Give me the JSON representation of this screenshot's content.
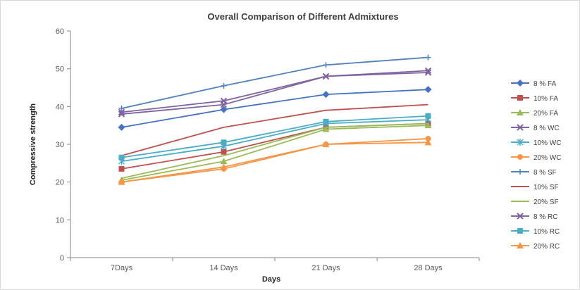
{
  "chart_data": {
    "type": "line",
    "title": "Overall Comparison of Different Admixtures",
    "xlabel": "Days",
    "ylabel": "Compressive strength",
    "categories": [
      "7Days",
      "14 Days",
      "21 Days",
      "28 Days"
    ],
    "ylim": [
      0,
      60
    ],
    "yticks": [
      0,
      10,
      20,
      30,
      40,
      50,
      60
    ],
    "grid": false,
    "legend_position": "right",
    "series": [
      {
        "name": "8 % FA",
        "color": "#4472C4",
        "marker": "diamond",
        "values": [
          34.5,
          39.2,
          43.2,
          44.5
        ]
      },
      {
        "name": "10% FA",
        "color": "#C0504D",
        "marker": "square",
        "values": [
          23.5,
          28.0,
          34.5,
          35.5
        ]
      },
      {
        "name": "20% FA",
        "color": "#9BBB59",
        "marker": "triangle",
        "values": [
          20.5,
          25.5,
          34.0,
          35.0
        ]
      },
      {
        "name": "8 % WC",
        "color": "#8064A2",
        "marker": "x",
        "values": [
          38.0,
          40.5,
          48.0,
          49.0
        ]
      },
      {
        "name": "10% WC",
        "color": "#4BACC6",
        "marker": "star",
        "values": [
          25.5,
          29.5,
          35.5,
          36.5
        ]
      },
      {
        "name": "20% WC",
        "color": "#F79646",
        "marker": "circle",
        "values": [
          20.0,
          23.5,
          30.0,
          31.5
        ]
      },
      {
        "name": "8 % SF",
        "color": "#4F81BD",
        "marker": "plus",
        "values": [
          39.5,
          45.5,
          51.0,
          53.0
        ]
      },
      {
        "name": "10% SF",
        "color": "#C0504D",
        "marker": "none",
        "values": [
          27.0,
          34.5,
          39.0,
          40.5
        ]
      },
      {
        "name": "20% SF",
        "color": "#9BBB59",
        "marker": "none",
        "values": [
          21.0,
          27.0,
          34.5,
          35.5
        ]
      },
      {
        "name": "8 % RC",
        "color": "#8064A2",
        "marker": "x",
        "values": [
          38.5,
          41.5,
          48.0,
          49.5
        ]
      },
      {
        "name": "10% RC",
        "color": "#4BACC6",
        "marker": "square",
        "values": [
          26.5,
          30.5,
          36.0,
          37.5
        ]
      },
      {
        "name": "20% RC",
        "color": "#F79646",
        "marker": "triangle",
        "values": [
          20.0,
          24.0,
          30.0,
          30.5
        ]
      }
    ]
  }
}
